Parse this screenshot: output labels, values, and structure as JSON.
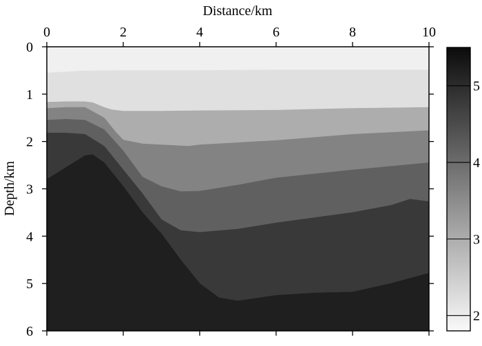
{
  "chart_data": {
    "type": "heatmap",
    "title": "",
    "xlabel": "Distance/km",
    "ylabel": "Depth/km",
    "xlim": [
      0,
      10
    ],
    "ylim": [
      0,
      6
    ],
    "y_inverted": true,
    "x_axis_position": "top",
    "x_ticks": [
      0,
      2,
      4,
      6,
      8,
      10
    ],
    "x_tick_labels": [
      "0",
      "2",
      "4",
      "6",
      "8",
      "10"
    ],
    "y_ticks": [
      0,
      1,
      2,
      3,
      4,
      5,
      6
    ],
    "y_tick_labels": [
      "0",
      "1",
      "2",
      "3",
      "4",
      "5",
      "6"
    ],
    "colorscale": "grayscale (light = low, dark = high)",
    "colorbar": {
      "position": "right",
      "range": [
        1.8,
        5.5
      ],
      "ticks": [
        2,
        3,
        4,
        5
      ],
      "tick_labels": [
        "2",
        "3",
        "4",
        "5"
      ]
    },
    "background_value": 1.95,
    "layers": [
      {
        "value": 2.2,
        "top_boundary": [
          [
            0,
            0.55
          ],
          [
            0.5,
            0.53
          ],
          [
            1,
            0.51
          ],
          [
            2,
            0.5
          ],
          [
            4,
            0.5
          ],
          [
            6,
            0.49
          ],
          [
            8,
            0.49
          ],
          [
            10,
            0.49
          ]
        ]
      },
      {
        "value": 3.0,
        "top_boundary": [
          [
            0,
            1.17
          ],
          [
            0.5,
            1.16
          ],
          [
            1,
            1.16
          ],
          [
            1.2,
            1.18
          ],
          [
            1.5,
            1.28
          ],
          [
            1.7,
            1.33
          ],
          [
            2,
            1.36
          ],
          [
            3,
            1.36
          ],
          [
            4,
            1.35
          ],
          [
            6,
            1.34
          ],
          [
            8,
            1.3
          ],
          [
            10,
            1.28
          ]
        ]
      },
      {
        "value": 3.65,
        "top_boundary": [
          [
            0,
            1.3
          ],
          [
            0.5,
            1.28
          ],
          [
            1,
            1.28
          ],
          [
            1.5,
            1.5
          ],
          [
            1.8,
            1.8
          ],
          [
            2,
            1.97
          ],
          [
            2.5,
            2.05
          ],
          [
            3,
            2.07
          ],
          [
            3.7,
            2.1
          ],
          [
            4,
            2.07
          ],
          [
            6,
            1.98
          ],
          [
            8,
            1.85
          ],
          [
            10,
            1.77
          ]
        ]
      },
      {
        "value": 4.2,
        "top_boundary": [
          [
            0,
            1.55
          ],
          [
            0.5,
            1.53
          ],
          [
            1,
            1.55
          ],
          [
            1.5,
            1.75
          ],
          [
            2,
            2.2
          ],
          [
            2.5,
            2.75
          ],
          [
            3,
            2.95
          ],
          [
            3.5,
            3.06
          ],
          [
            4,
            3.05
          ],
          [
            5,
            2.92
          ],
          [
            6,
            2.77
          ],
          [
            8,
            2.6
          ],
          [
            10,
            2.45
          ]
        ]
      },
      {
        "value": 4.8,
        "top_boundary": [
          [
            0,
            1.82
          ],
          [
            0.5,
            1.82
          ],
          [
            1,
            1.85
          ],
          [
            1.5,
            2.1
          ],
          [
            2,
            2.6
          ],
          [
            2.5,
            3.1
          ],
          [
            3,
            3.65
          ],
          [
            3.5,
            3.88
          ],
          [
            4,
            3.92
          ],
          [
            5,
            3.85
          ],
          [
            6,
            3.72
          ],
          [
            8,
            3.5
          ],
          [
            9,
            3.35
          ],
          [
            9.5,
            3.22
          ],
          [
            10,
            3.27
          ]
        ]
      },
      {
        "value": 5.2,
        "top_boundary": [
          [
            0,
            2.8
          ],
          [
            0.5,
            2.55
          ],
          [
            1,
            2.3
          ],
          [
            1.2,
            2.28
          ],
          [
            1.5,
            2.45
          ],
          [
            2,
            2.95
          ],
          [
            2.5,
            3.5
          ],
          [
            3,
            3.95
          ],
          [
            3.5,
            4.5
          ],
          [
            4,
            5.0
          ],
          [
            4.5,
            5.3
          ],
          [
            5,
            5.37
          ],
          [
            6,
            5.25
          ],
          [
            7,
            5.2
          ],
          [
            8,
            5.18
          ],
          [
            9,
            5.0
          ],
          [
            10,
            4.78
          ]
        ]
      }
    ]
  }
}
